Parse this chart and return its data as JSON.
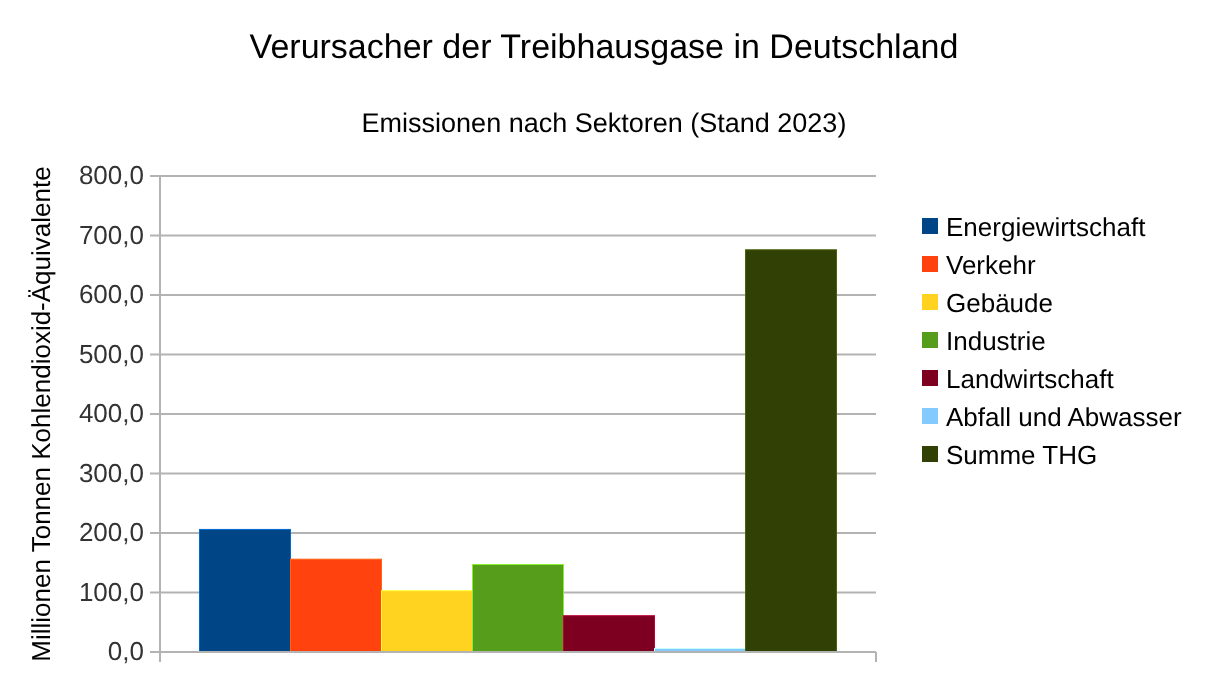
{
  "chart_data": {
    "type": "bar",
    "title": "Verursacher der Treibhausgase in Deutschland",
    "subtitle": "Emissionen nach Sektoren (Stand 2023)",
    "ylabel": "Millionen Tonnen Kohlendioxid-Äquivalente",
    "categories": [
      null
    ],
    "series": [
      {
        "name": "Energiewirtschaft",
        "color": "#004586",
        "values": [
          206
        ]
      },
      {
        "name": "Verkehr",
        "color": "#ff420e",
        "values": [
          156
        ]
      },
      {
        "name": "Gebäude",
        "color": "#ffd320",
        "values": [
          103
        ]
      },
      {
        "name": "Industrie",
        "color": "#579d1c",
        "values": [
          147
        ]
      },
      {
        "name": "Landwirtschaft",
        "color": "#7e0021",
        "values": [
          61
        ]
      },
      {
        "name": "Abfall und Abwasser",
        "color": "#83caff",
        "values": [
          6
        ]
      },
      {
        "name": "Summe THG",
        "color": "#314004",
        "values": [
          676
        ]
      }
    ],
    "ylim": [
      0,
      800
    ],
    "yticks": [
      {
        "value": 0,
        "label": "0,0"
      },
      {
        "value": 100,
        "label": "100,0"
      },
      {
        "value": 200,
        "label": "200,0"
      },
      {
        "value": 300,
        "label": "300,0"
      },
      {
        "value": 400,
        "label": "400,0"
      },
      {
        "value": 500,
        "label": "500,0"
      },
      {
        "value": 600,
        "label": "600,0"
      },
      {
        "value": 700,
        "label": "700,0"
      },
      {
        "value": 800,
        "label": "800,0"
      }
    ],
    "grid": "y",
    "legend": "right"
  }
}
